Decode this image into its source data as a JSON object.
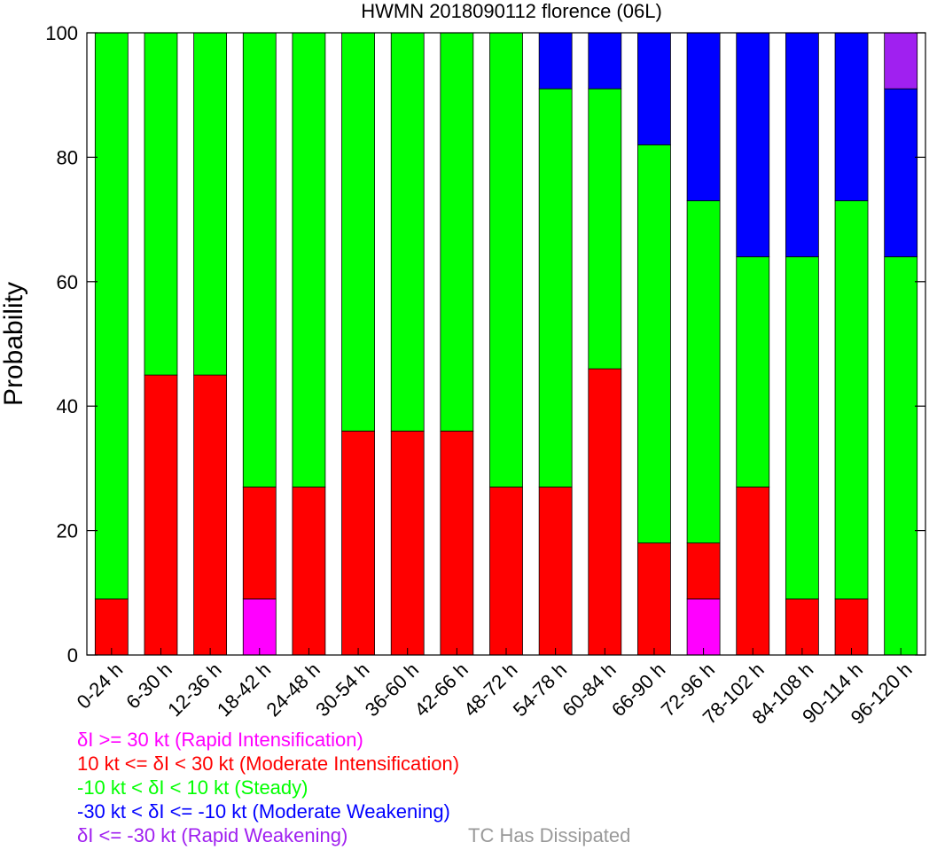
{
  "chart_data": {
    "type": "bar",
    "stacked": true,
    "title": "HWMN 2018090112 florence (06L)",
    "xlabel": "",
    "ylabel": "Probability",
    "ylim": [
      0,
      100
    ],
    "yticks": [
      0,
      20,
      40,
      60,
      80,
      100
    ],
    "grid": false,
    "legend_position": "bottom-left",
    "categories": [
      "0-24 h",
      "6-30 h",
      "12-36 h",
      "18-42 h",
      "24-48 h",
      "30-54 h",
      "36-60 h",
      "42-66 h",
      "48-72 h",
      "54-78 h",
      "60-84 h",
      "66-90 h",
      "72-96 h",
      "78-102 h",
      "84-108 h",
      "90-114 h",
      "96-120 h"
    ],
    "series": [
      {
        "name": "δI >= 30 kt (Rapid Intensification)",
        "color": "#ff00ff",
        "values": [
          0,
          0,
          0,
          9,
          0,
          0,
          0,
          0,
          0,
          0,
          0,
          0,
          9,
          0,
          0,
          0,
          0
        ]
      },
      {
        "name": "10 kt <= δI < 30 kt (Moderate Intensification)",
        "color": "#ff0000",
        "values": [
          9,
          45,
          45,
          18,
          27,
          36,
          36,
          36,
          27,
          27,
          46,
          18,
          9,
          27,
          9,
          9,
          0
        ]
      },
      {
        "name": "-10 kt < δI < 10 kt (Steady)",
        "color": "#00ff00",
        "values": [
          91,
          55,
          55,
          73,
          73,
          64,
          64,
          64,
          73,
          64,
          45,
          64,
          55,
          37,
          55,
          64,
          64
        ]
      },
      {
        "name": "-30 kt < δI <= -10 kt (Moderate Weakening)",
        "color": "#0000ff",
        "values": [
          0,
          0,
          0,
          0,
          0,
          0,
          0,
          0,
          0,
          9,
          9,
          18,
          27,
          36,
          36,
          27,
          27
        ]
      },
      {
        "name": "δI <= -30 kt (Rapid Weakening)",
        "color": "#a020f0",
        "values": [
          0,
          0,
          0,
          0,
          0,
          0,
          0,
          0,
          0,
          0,
          0,
          0,
          0,
          0,
          0,
          0,
          9
        ]
      }
    ],
    "extra_legend": {
      "name": "TC Has Dissipated",
      "color": "#999999"
    }
  }
}
